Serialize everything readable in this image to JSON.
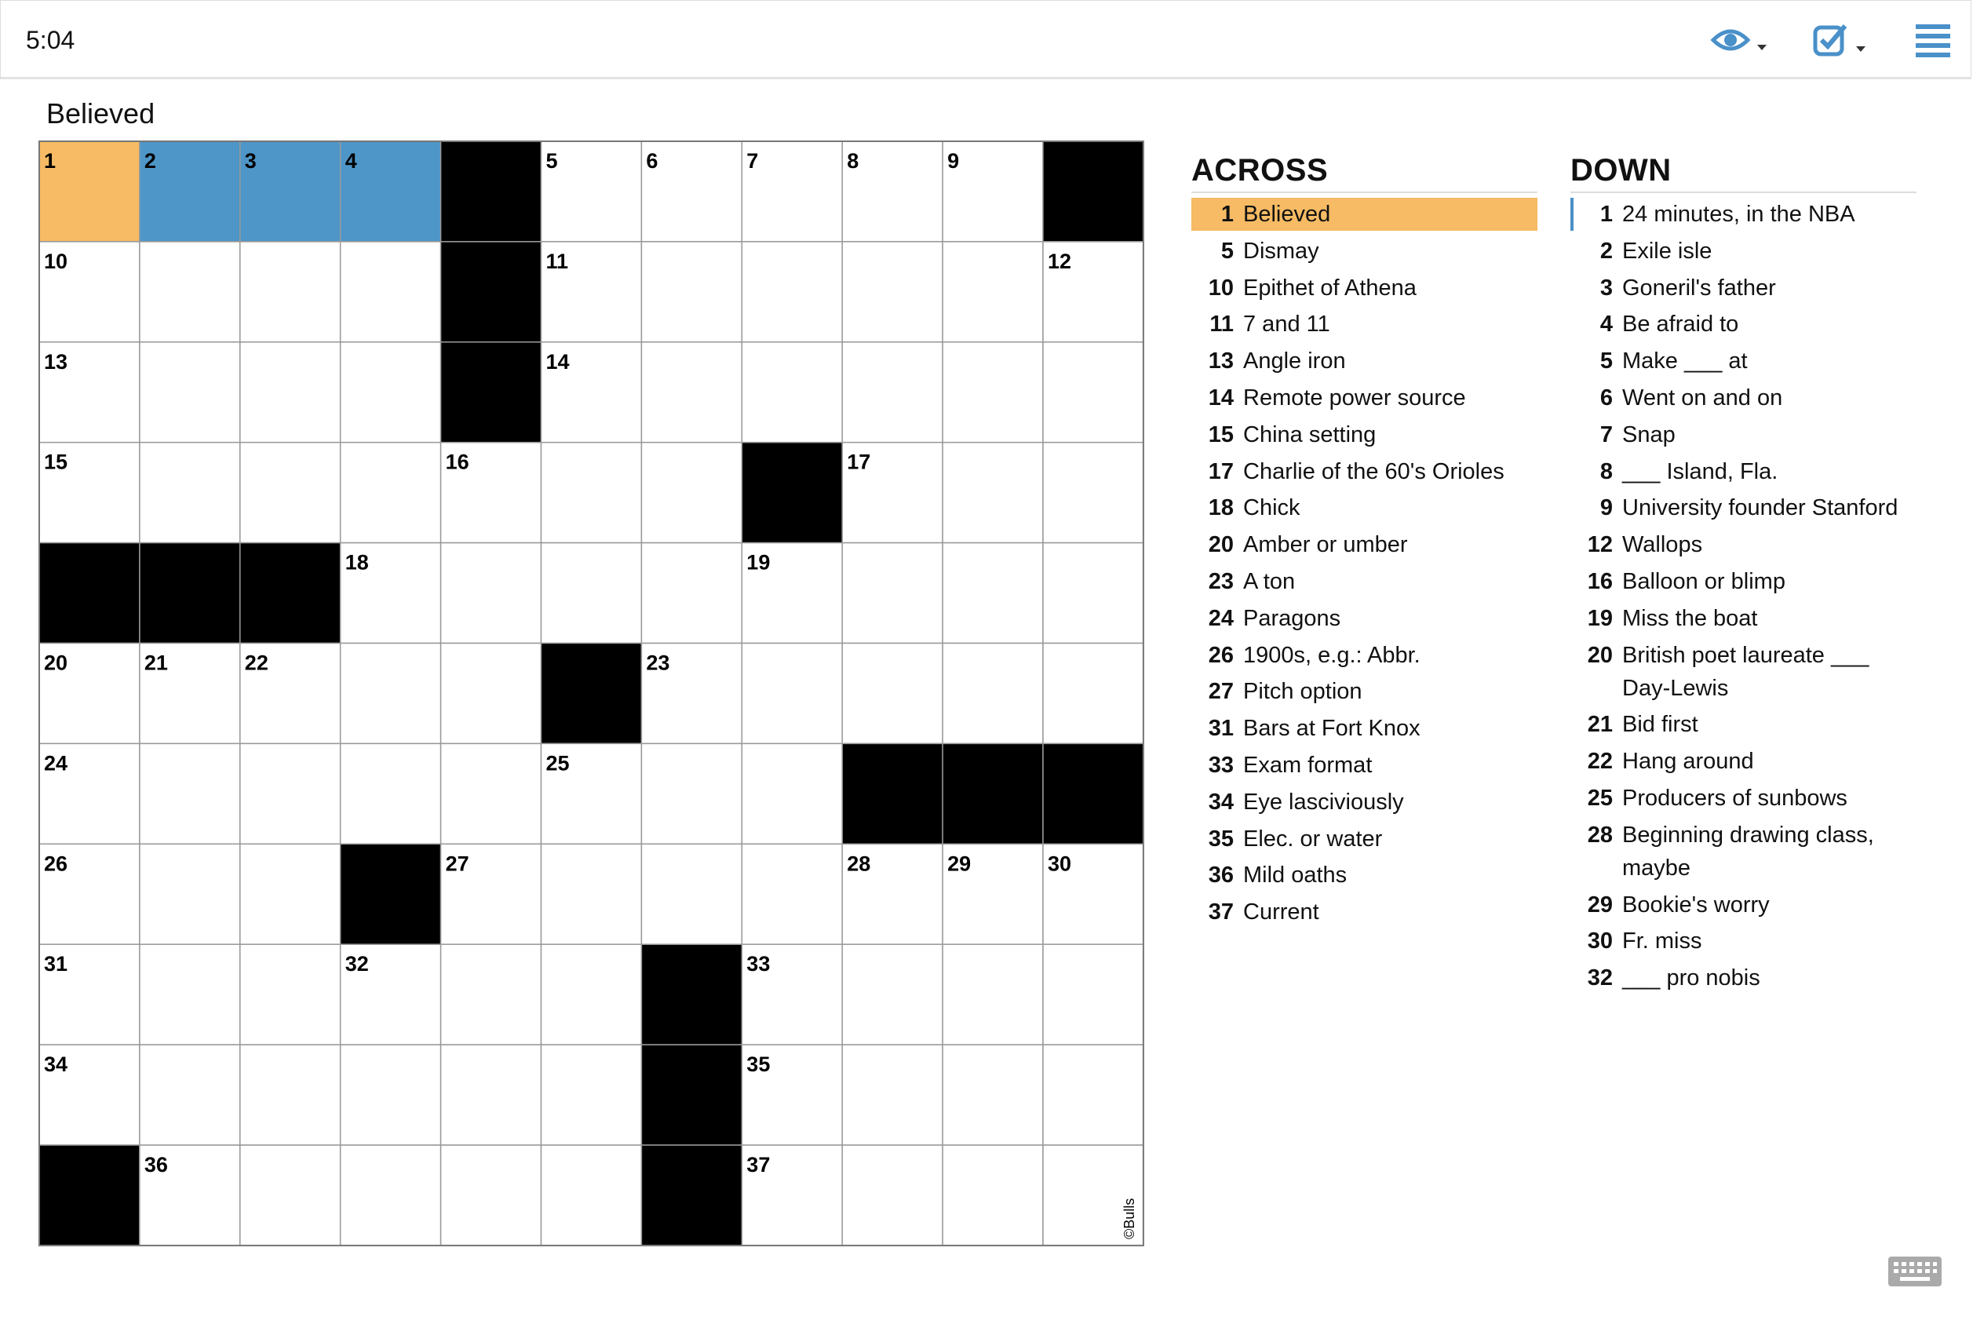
{
  "header": {
    "timer": "5:04"
  },
  "current_clue": "Believed",
  "grid": {
    "rows": [
      [
        1,
        2,
        3,
        4,
        false,
        5,
        6,
        7,
        8,
        9,
        false
      ],
      [
        10,
        null,
        null,
        null,
        false,
        11,
        null,
        null,
        null,
        null,
        12
      ],
      [
        13,
        null,
        null,
        null,
        false,
        14,
        null,
        null,
        null,
        null,
        null
      ],
      [
        15,
        null,
        null,
        null,
        16,
        null,
        null,
        false,
        17,
        null,
        null
      ],
      [
        false,
        false,
        false,
        18,
        null,
        null,
        null,
        19,
        null,
        null,
        null
      ],
      [
        20,
        21,
        22,
        null,
        null,
        false,
        23,
        null,
        null,
        null,
        null
      ],
      [
        24,
        null,
        null,
        null,
        null,
        25,
        null,
        null,
        false,
        false,
        false
      ],
      [
        26,
        null,
        null,
        false,
        27,
        null,
        null,
        null,
        28,
        29,
        30
      ],
      [
        31,
        null,
        null,
        32,
        null,
        null,
        false,
        33,
        null,
        null,
        null
      ],
      [
        34,
        null,
        null,
        null,
        null,
        null,
        false,
        35,
        null,
        null,
        null
      ],
      [
        false,
        36,
        null,
        null,
        null,
        null,
        false,
        37,
        null,
        null,
        null
      ]
    ],
    "copyright": "©Bulls"
  },
  "active": {
    "direction": "across",
    "number": 1
  },
  "clues": {
    "across": {
      "title": "ACROSS",
      "items": [
        {
          "number": 1,
          "text": "Believed"
        },
        {
          "number": 5,
          "text": "Dismay"
        },
        {
          "number": 10,
          "text": "Epithet of Athena"
        },
        {
          "number": 11,
          "text": "7 and 11"
        },
        {
          "number": 13,
          "text": "Angle iron"
        },
        {
          "number": 14,
          "text": "Remote power source"
        },
        {
          "number": 15,
          "text": "China setting"
        },
        {
          "number": 17,
          "text": "Charlie of the 60's Orioles"
        },
        {
          "number": 18,
          "text": "Chick"
        },
        {
          "number": 20,
          "text": "Amber or umber"
        },
        {
          "number": 23,
          "text": "A ton"
        },
        {
          "number": 24,
          "text": "Paragons"
        },
        {
          "number": 26,
          "text": "1900s, e.g.: Abbr."
        },
        {
          "number": 27,
          "text": "Pitch option"
        },
        {
          "number": 31,
          "text": "Bars at Fort Knox"
        },
        {
          "number": 33,
          "text": "Exam format"
        },
        {
          "number": 34,
          "text": "Eye lasciviously"
        },
        {
          "number": 35,
          "text": "Elec. or water"
        },
        {
          "number": 36,
          "text": "Mild oaths"
        },
        {
          "number": 37,
          "text": "Current"
        }
      ]
    },
    "down": {
      "title": "DOWN",
      "items": [
        {
          "number": 1,
          "text": "24 minutes, in the NBA"
        },
        {
          "number": 2,
          "text": "Exile isle"
        },
        {
          "number": 3,
          "text": "Goneril's father"
        },
        {
          "number": 4,
          "text": "Be afraid to"
        },
        {
          "number": 5,
          "text": "Make ___ at"
        },
        {
          "number": 6,
          "text": "Went on and on"
        },
        {
          "number": 7,
          "text": "Snap"
        },
        {
          "number": 8,
          "text": "___ Island, Fla."
        },
        {
          "number": 9,
          "text": "University founder Stanford"
        },
        {
          "number": 12,
          "text": "Wallops"
        },
        {
          "number": 16,
          "text": "Balloon or blimp"
        },
        {
          "number": 19,
          "text": "Miss the boat"
        },
        {
          "number": 20,
          "text": "British poet laureate ___ Day-Lewis"
        },
        {
          "number": 21,
          "text": "Bid first"
        },
        {
          "number": 22,
          "text": "Hang around"
        },
        {
          "number": 25,
          "text": "Producers of sunbows"
        },
        {
          "number": 28,
          "text": "Beginning drawing class, maybe"
        },
        {
          "number": 29,
          "text": "Bookie's worry"
        },
        {
          "number": 30,
          "text": "Fr. miss"
        },
        {
          "number": 32,
          "text": "___ pro nobis"
        }
      ]
    }
  }
}
